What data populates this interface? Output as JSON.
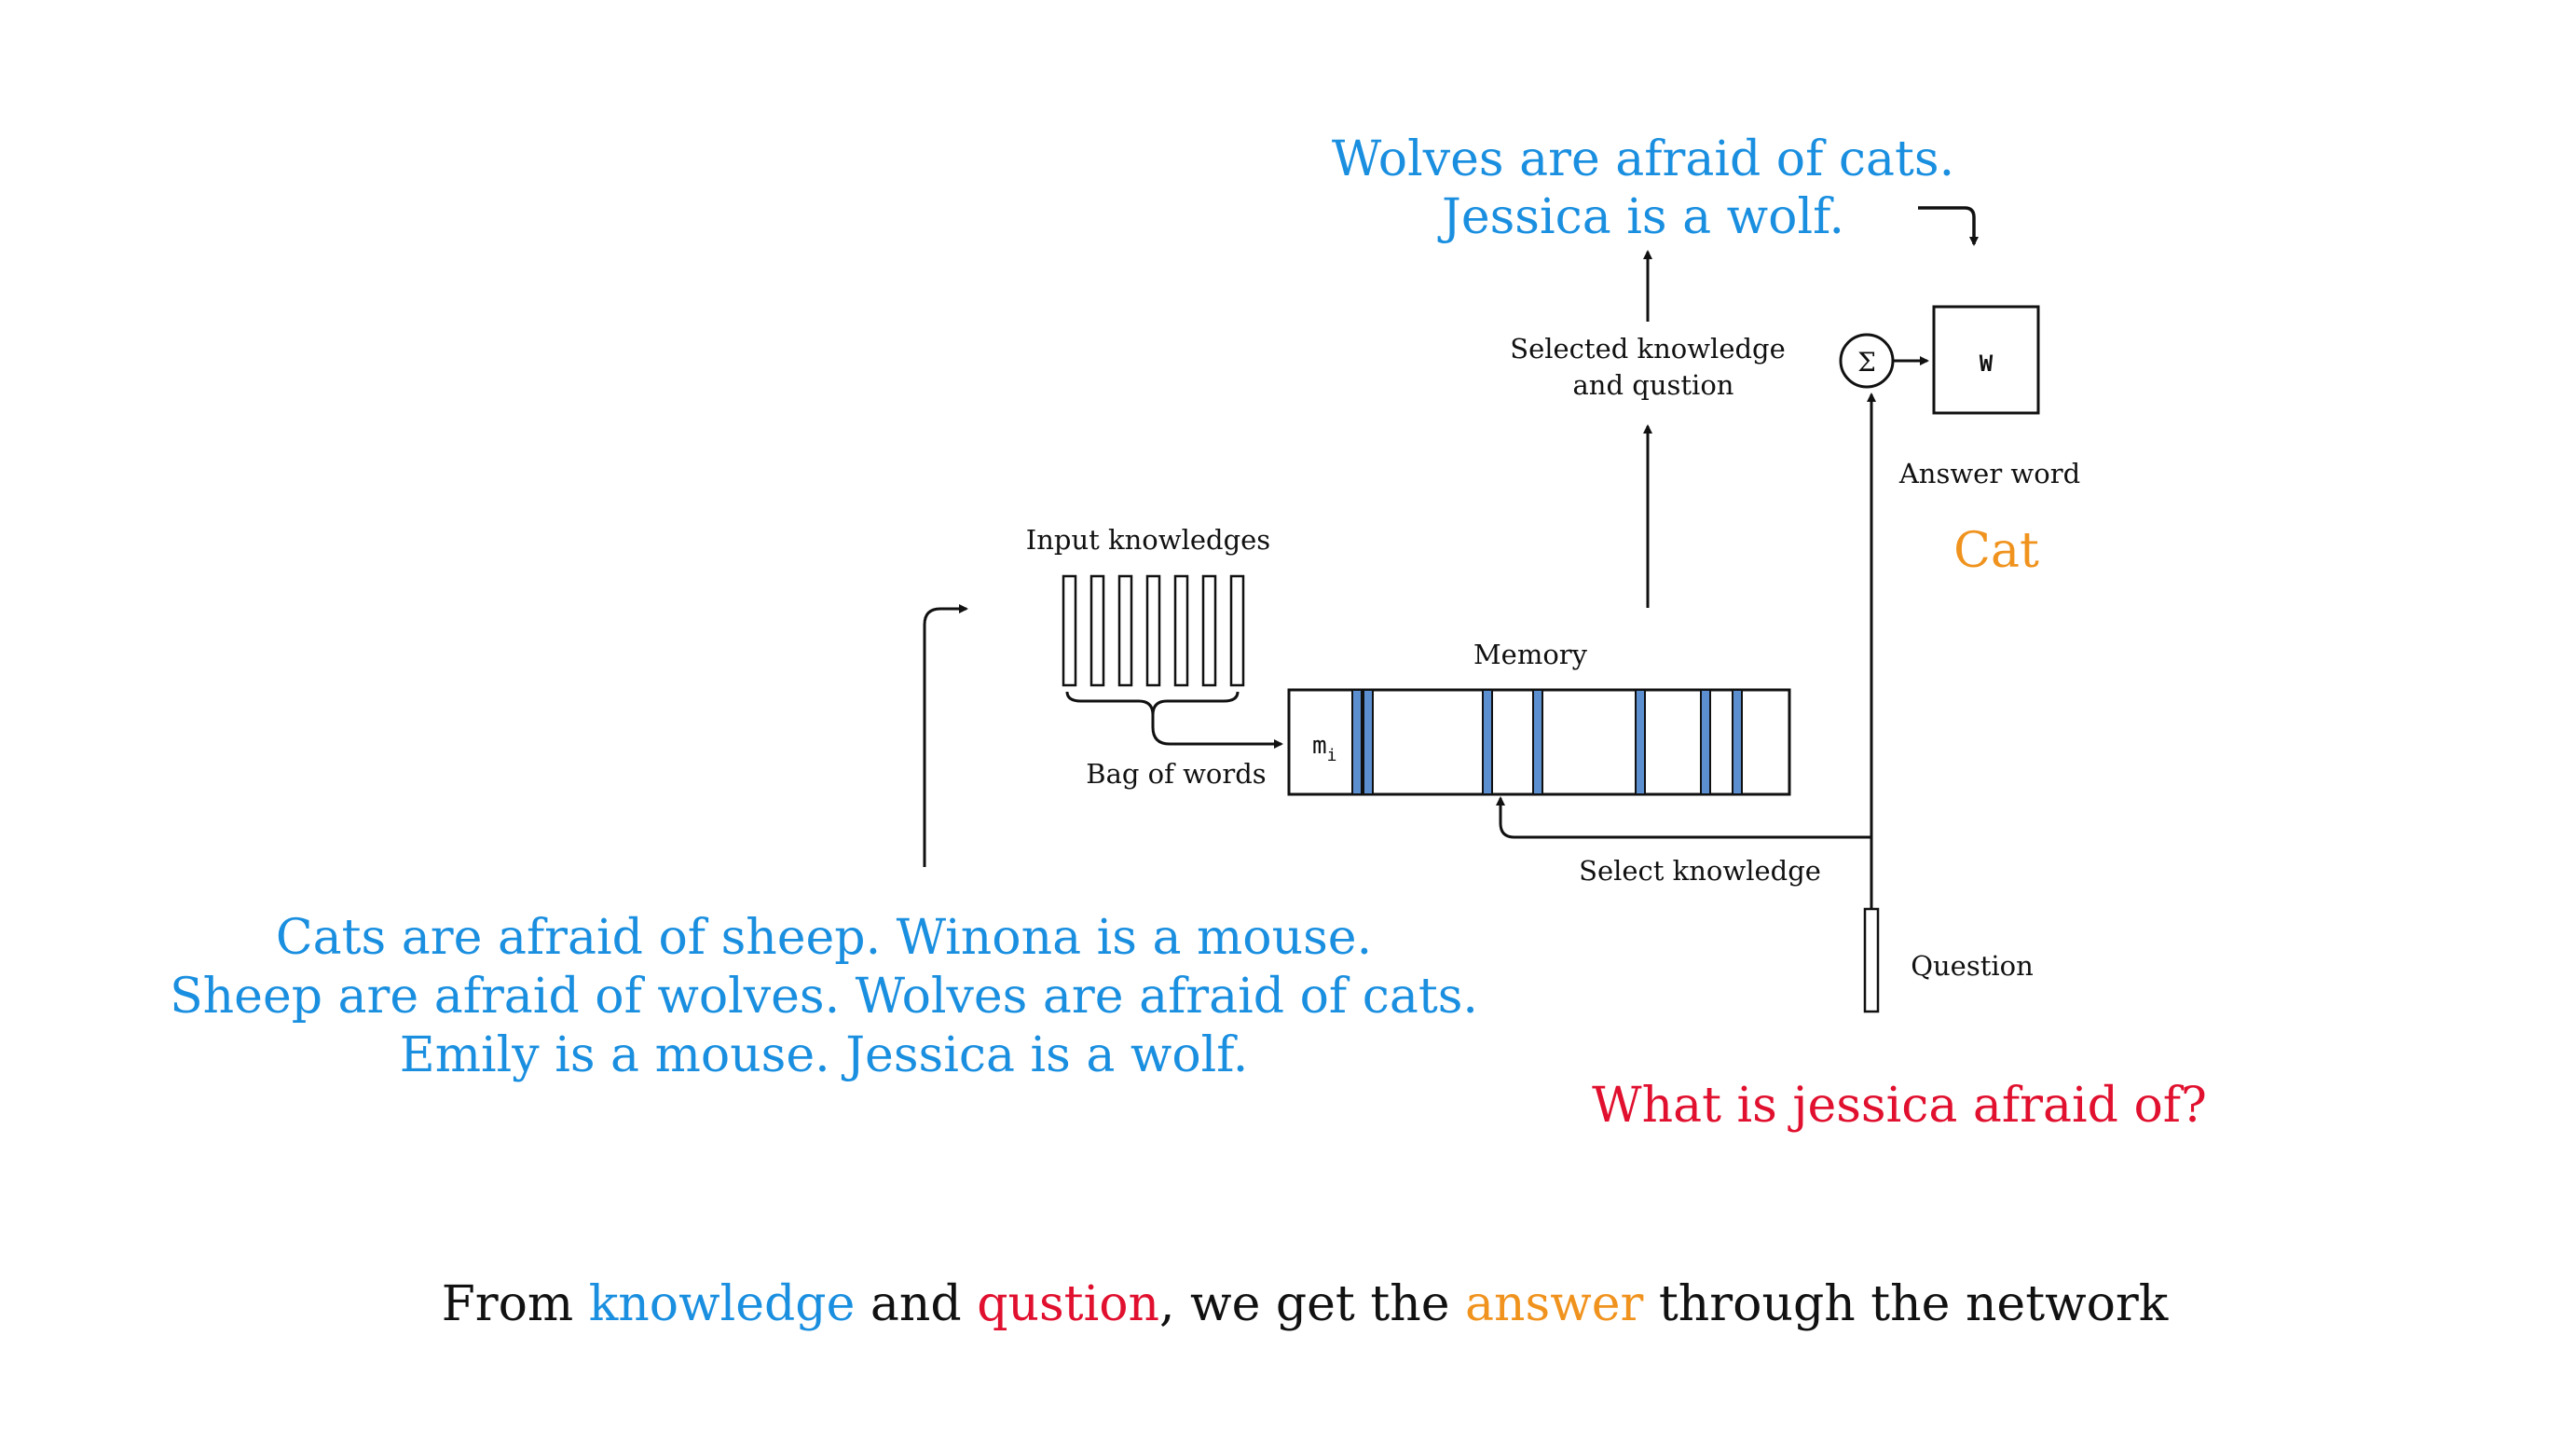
{
  "colors": {
    "knowledge": "#1a8fe0",
    "question": "#e0102e",
    "answer": "#f0931e",
    "text": "#111111",
    "memory_slot": "#5b8fd0"
  },
  "top_knowledge": {
    "line1": "Wolves are afraid of cats.",
    "line2": "Jessica is a wolf."
  },
  "labels": {
    "selected_line1": "Selected knowledge",
    "selected_line2": "and qustion",
    "answer_word": "Answer word",
    "input_knowledges": "Input knowledges",
    "memory": "Memory",
    "bag_of_words": "Bag of words",
    "select_knowledge": "Select knowledge",
    "question": "Question",
    "sigma": "Σ",
    "w": "W",
    "m": "m",
    "m_sub": "i"
  },
  "answer": "Cat",
  "input_knowledge": {
    "line1": "Cats are afraid of sheep.  Winona is a mouse.",
    "line2": "Sheep are afraid of wolves.  Wolves are afraid of cats.",
    "line3": "Emily is a mouse.  Jessica is a wolf."
  },
  "question_text": "What is jessica afraid of?",
  "caption": {
    "part1": "From ",
    "knowledge": "knowledge",
    "part2": " and ",
    "question": "qustion",
    "part3": ", we get the ",
    "answer": "answer",
    "part4": " through the network"
  }
}
